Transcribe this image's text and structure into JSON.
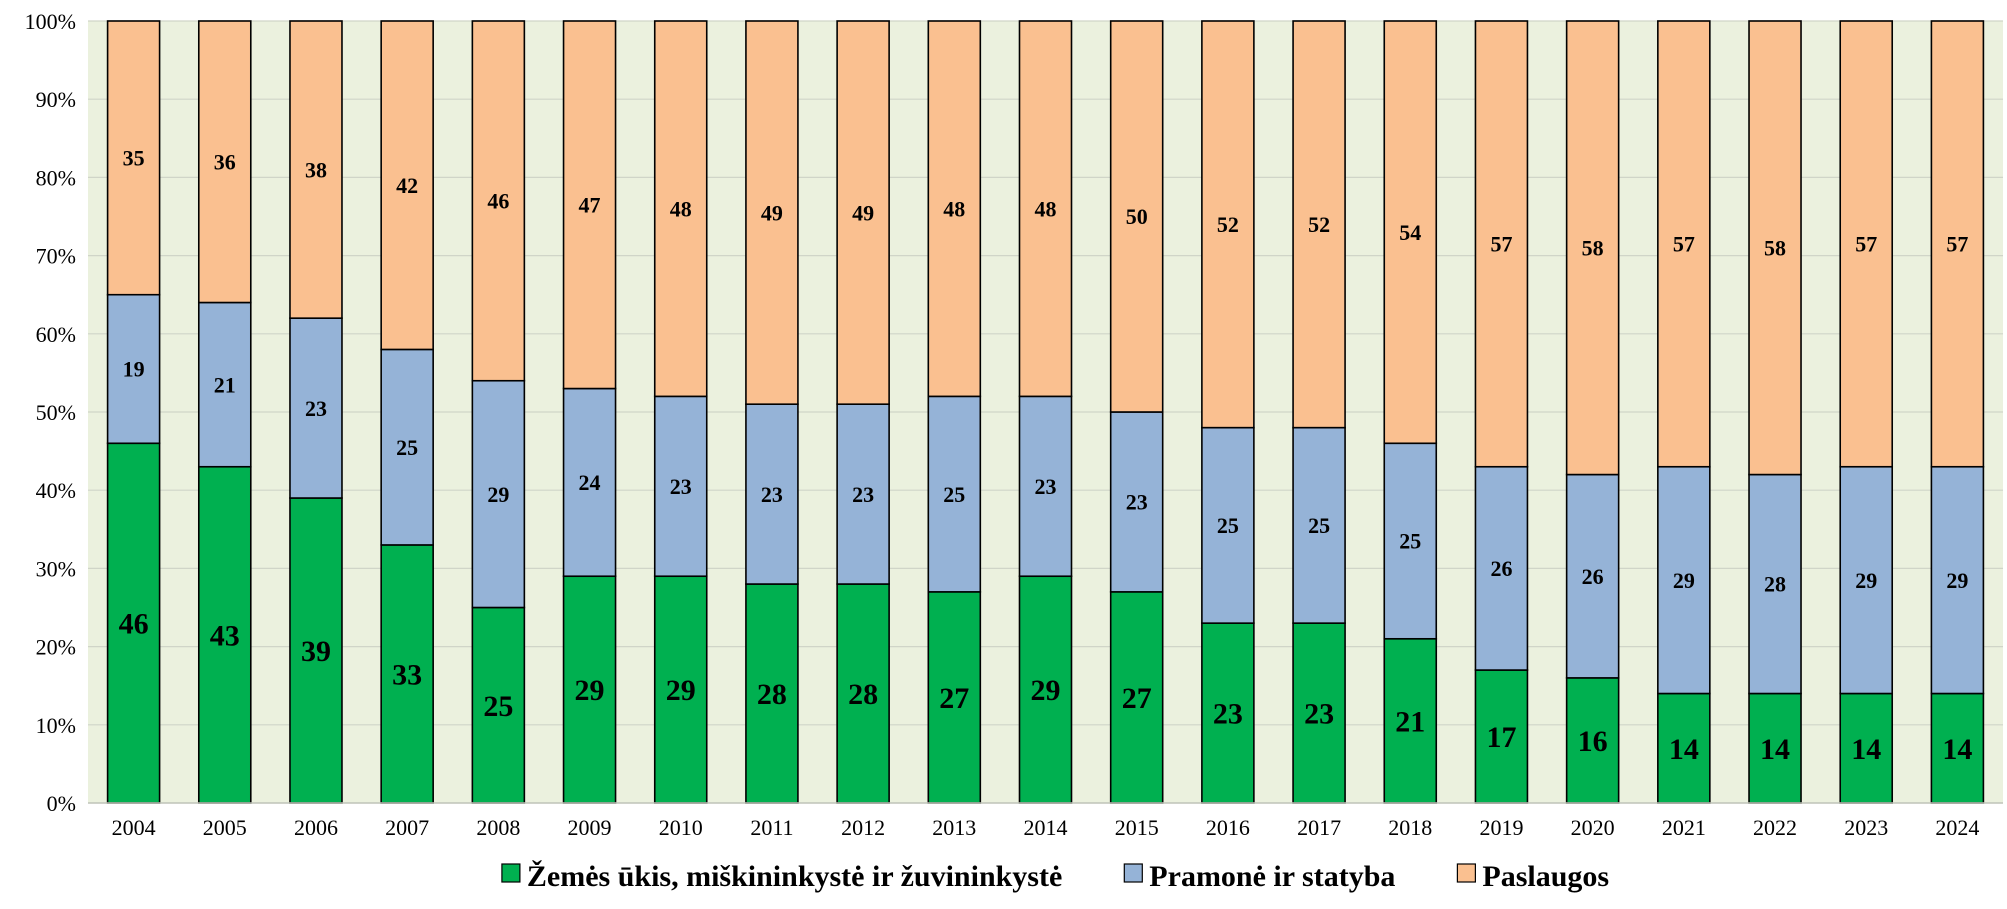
{
  "chart_data": {
    "type": "bar",
    "stacked": true,
    "normalized": true,
    "categories": [
      "2004",
      "2005",
      "2006",
      "2007",
      "2008",
      "2009",
      "2010",
      "2011",
      "2012",
      "2013",
      "2014",
      "2015",
      "2016",
      "2017",
      "2018",
      "2019",
      "2020",
      "2021",
      "2022",
      "2023",
      "2024"
    ],
    "series": [
      {
        "name": "Žemės ūkis, miškininkystė ir žuvininkystė",
        "color": "#00B050",
        "values": [
          46,
          43,
          39,
          33,
          25,
          29,
          29,
          28,
          28,
          27,
          29,
          27,
          23,
          23,
          21,
          17,
          16,
          14,
          14,
          14,
          14
        ]
      },
      {
        "name": "Pramonė ir statyba",
        "color": "#95B3D7",
        "values": [
          19,
          21,
          23,
          25,
          29,
          24,
          23,
          23,
          23,
          25,
          23,
          23,
          25,
          25,
          25,
          26,
          26,
          29,
          28,
          29,
          29
        ]
      },
      {
        "name": "Paslaugos",
        "color": "#FAC090",
        "values": [
          35,
          36,
          38,
          42,
          46,
          47,
          48,
          49,
          49,
          48,
          48,
          50,
          52,
          52,
          54,
          57,
          58,
          57,
          58,
          57,
          57
        ]
      }
    ],
    "y_ticks": [
      "0%",
      "10%",
      "20%",
      "30%",
      "40%",
      "50%",
      "60%",
      "70%",
      "80%",
      "90%",
      "100%"
    ],
    "ylim": [
      0,
      100
    ],
    "grid": true,
    "plot_background": "#EBF1DE",
    "legend_position": "bottom",
    "title": "",
    "xlabel": "",
    "ylabel": ""
  }
}
